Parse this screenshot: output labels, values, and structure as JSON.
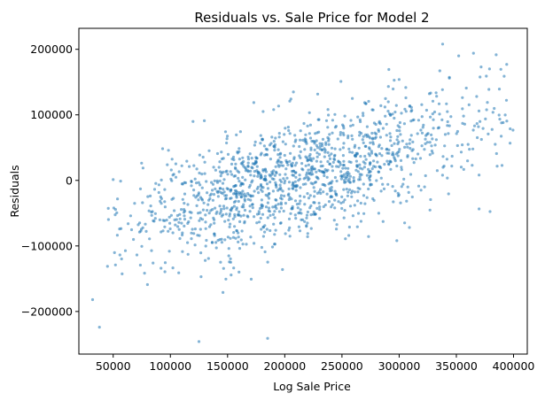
{
  "chart_data": {
    "type": "scatter",
    "title": "Residuals vs. Sale Price for Model 2",
    "xlabel": "Log Sale Price",
    "ylabel": "Residuals",
    "xlim": [
      20000,
      412000
    ],
    "ylim": [
      -265000,
      232000
    ],
    "xticks": [
      50000,
      100000,
      150000,
      200000,
      250000,
      300000,
      350000,
      400000
    ],
    "yticks": [
      -200000,
      -100000,
      0,
      100000,
      200000
    ],
    "ytick_labels": [
      "−200000",
      "−100000",
      "0",
      "100000",
      "200000"
    ],
    "grid": false,
    "marker_color": "#1f77b4",
    "marker_alpha": 0.55,
    "approx_points": 1400,
    "trend": {
      "slope": 0.5,
      "x_center": 200000,
      "noise_sd": 45000
    },
    "notable_points": [
      {
        "x": 32000,
        "y": -182000
      },
      {
        "x": 38000,
        "y": -224000
      },
      {
        "x": 125000,
        "y": -246000
      },
      {
        "x": 185000,
        "y": -241000
      },
      {
        "x": 80000,
        "y": -159000
      },
      {
        "x": 146000,
        "y": -171000
      },
      {
        "x": 52000,
        "y": -129000
      },
      {
        "x": 338000,
        "y": 208000
      },
      {
        "x": 352000,
        "y": 190000
      },
      {
        "x": 365000,
        "y": 194000
      },
      {
        "x": 379000,
        "y": 170000
      },
      {
        "x": 394000,
        "y": 177000
      },
      {
        "x": 300000,
        "y": 154000
      },
      {
        "x": 298000,
        "y": -92000
      },
      {
        "x": 256000,
        "y": -84000
      },
      {
        "x": 198000,
        "y": -136000
      },
      {
        "x": 160000,
        "y": -140000
      }
    ]
  }
}
